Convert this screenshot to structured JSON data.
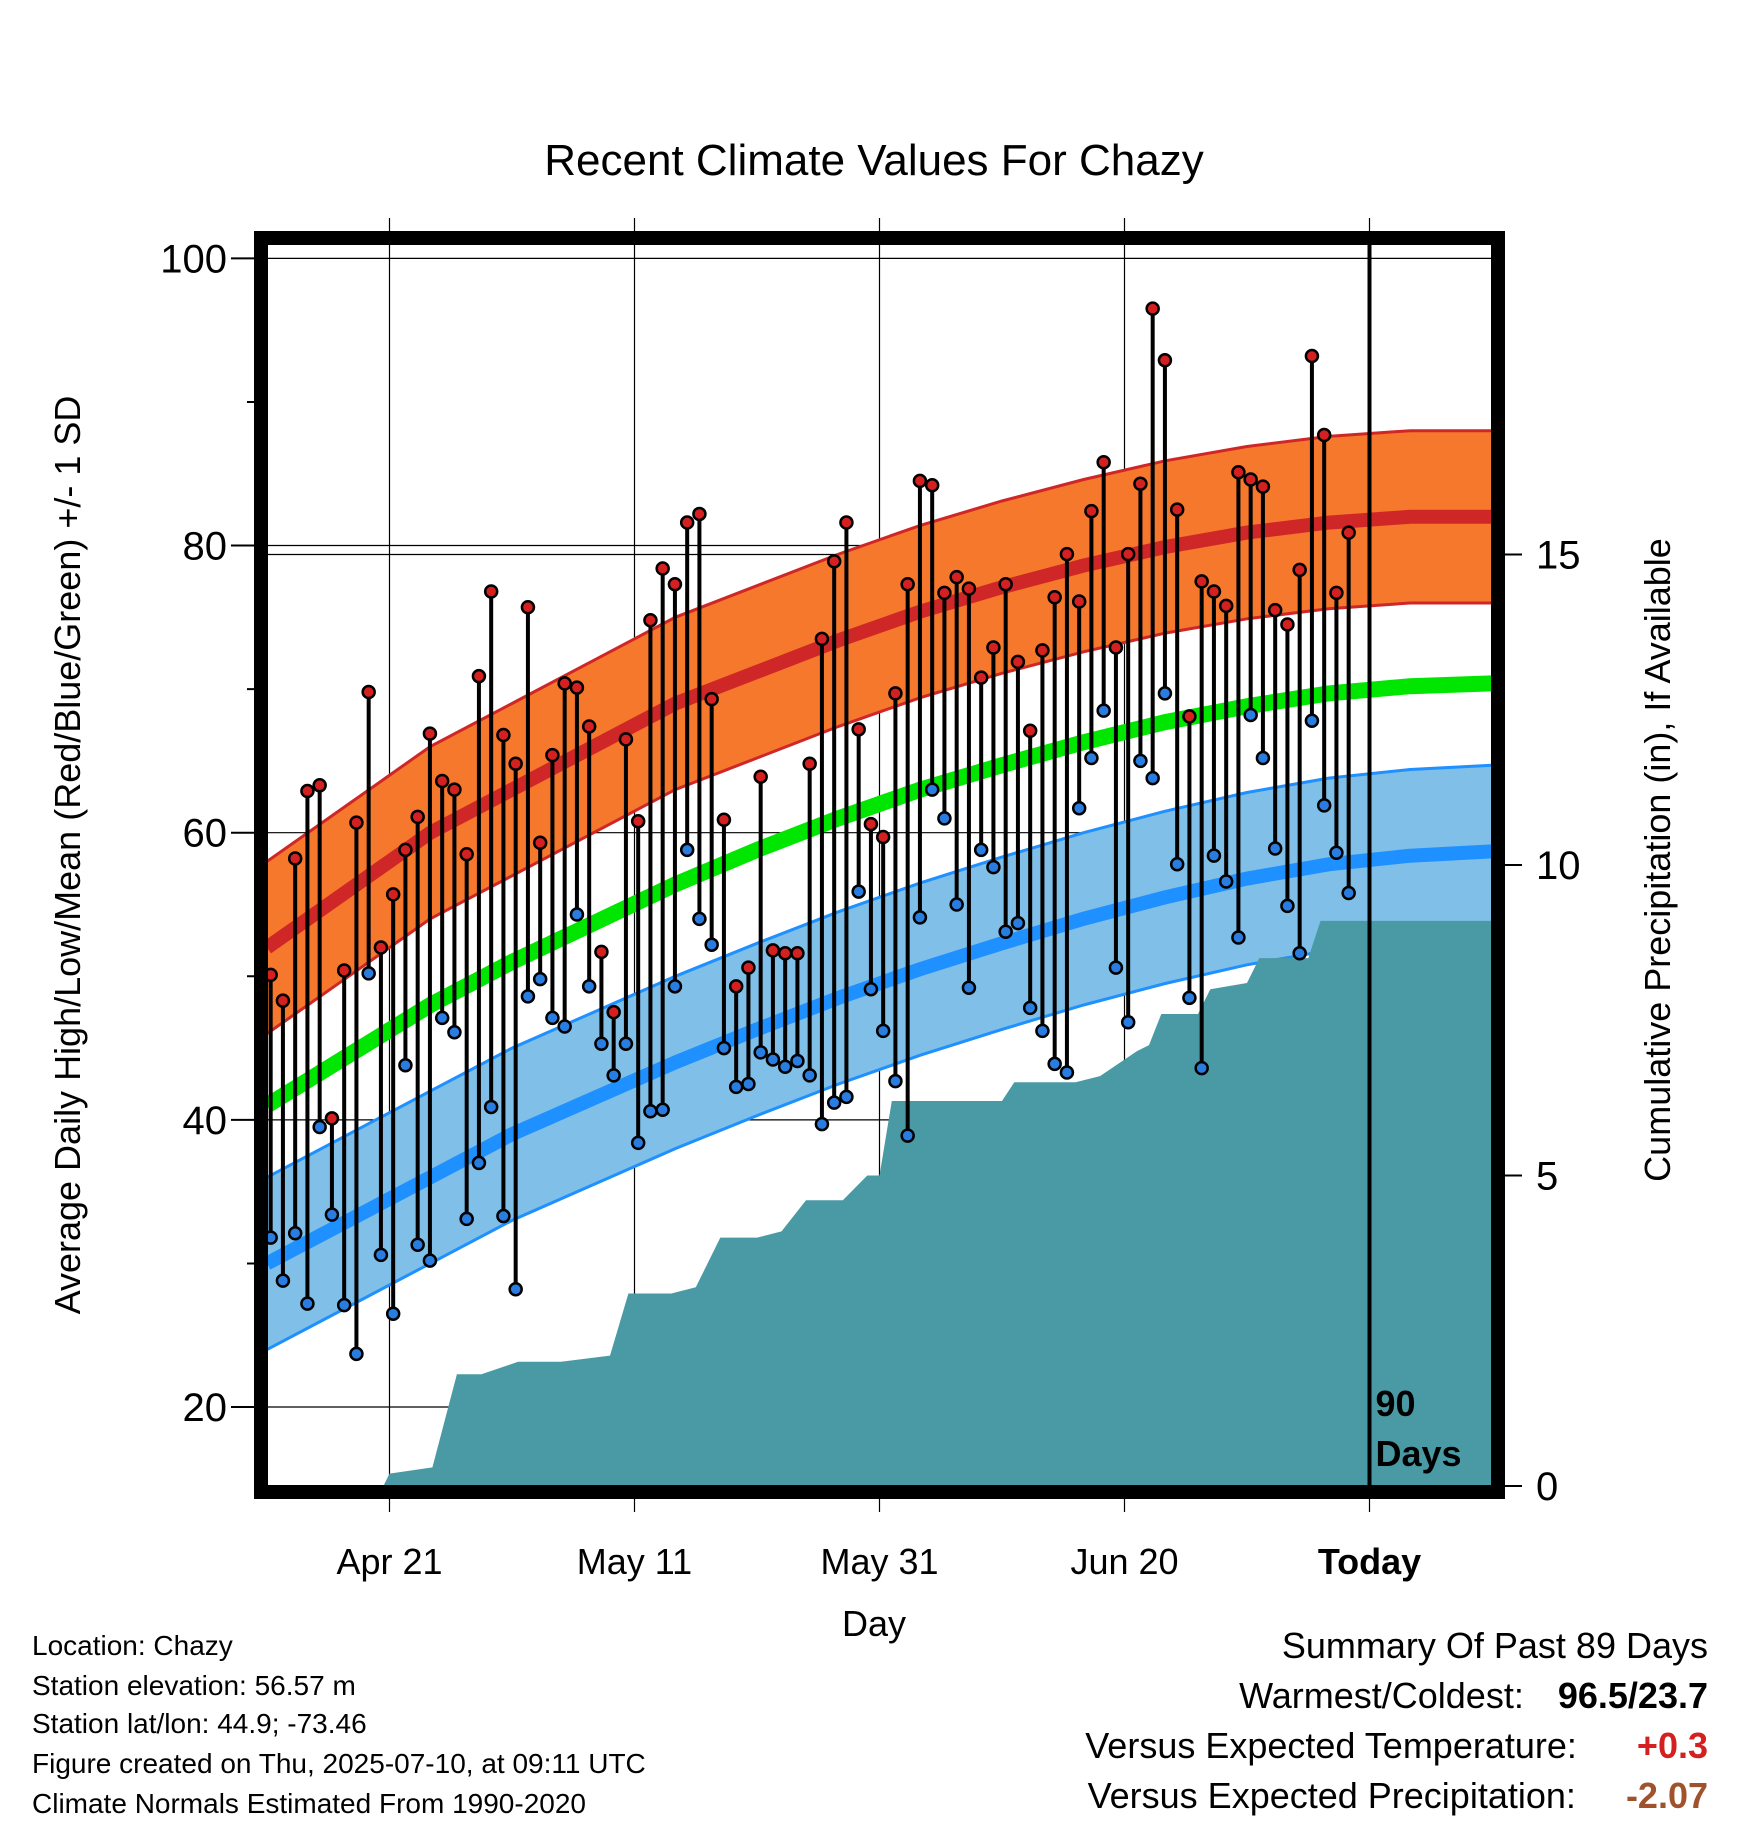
{
  "chart_data": {
    "type": "line",
    "title": "Recent Climate Values For Chazy",
    "xlabel": "Day",
    "ylabel": "Average Daily High/Low/Mean (Red/Blue/Green) +/- 1 SD",
    "y2label": "Cumulative Precipitation (in), If Available",
    "ylim": [
      14.5,
      101
    ],
    "yticks": [
      20,
      40,
      60,
      80,
      100
    ],
    "y2lim": [
      0,
      20
    ],
    "y2ticks": [
      0,
      5,
      10,
      15
    ],
    "xrange_days": [
      0,
      100
    ],
    "xticks": [
      {
        "day": 10,
        "label": "Apr 21"
      },
      {
        "day": 30,
        "label": "May 11"
      },
      {
        "day": 50,
        "label": "May 31"
      },
      {
        "day": 70,
        "label": "Jun 20"
      },
      {
        "day": 90,
        "label": "Today"
      }
    ],
    "today_marker": {
      "day": 90,
      "label_line1": "90",
      "label_line2": "Days"
    },
    "grid": true,
    "colors": {
      "high_band": "#f5782d",
      "high_mean": "#cf2727",
      "low_band": "#80bfe8",
      "low_mean": "#1e90ff",
      "mean_line": "#00e600",
      "precip": "#4a9aa5",
      "high_dot": "#d42020",
      "low_dot": "#2a7de0"
    },
    "normal_high": [
      52,
      56,
      60,
      63,
      66,
      69,
      71.2,
      73.4,
      75.4,
      77.1,
      78.6,
      79.9,
      80.9,
      81.6,
      82,
      82
    ],
    "normal_high_sd": 6,
    "normal_low": [
      30,
      33,
      36,
      39,
      41.5,
      44,
      46.3,
      48.5,
      50.5,
      52.3,
      54,
      55.5,
      56.8,
      57.8,
      58.4,
      58.7
    ],
    "normal_low_sd": 6,
    "normal_mean": [
      41,
      44.5,
      48,
      51,
      53.7,
      56.4,
      58.8,
      61,
      63,
      64.7,
      66.3,
      67.7,
      68.8,
      69.7,
      70.2,
      70.4
    ],
    "normal_step_days": 6.666,
    "daily_high": [
      50.1,
      48.3,
      58.2,
      62.9,
      63.3,
      40.1,
      50.4,
      60.7,
      69.8,
      52,
      55.7,
      58.8,
      61.1,
      66.9,
      63.6,
      63,
      58.5,
      70.9,
      76.8,
      66.8,
      64.8,
      75.7,
      59.3,
      65.4,
      70.4,
      70.1,
      67.4,
      51.7,
      47.5,
      66.5,
      60.8,
      74.8,
      78.4,
      77.3,
      81.6,
      82.2,
      69.3,
      60.9,
      49.3,
      50.6,
      63.9,
      51.8,
      51.6,
      51.6,
      64.8,
      73.5,
      78.9,
      81.6,
      67.2,
      60.6,
      59.7,
      69.7,
      77.3,
      84.5,
      84.2,
      76.7,
      77.8,
      77,
      70.8,
      72.9,
      77.3,
      71.9,
      67.1,
      72.7,
      76.4,
      79.4,
      76.1,
      82.4,
      85.8,
      72.9,
      79.4,
      84.3,
      96.5,
      92.9,
      82.5,
      68.1,
      77.5,
      76.8,
      75.8,
      85.1,
      84.6,
      84.1,
      75.5,
      74.5,
      78.3,
      93.2,
      87.7,
      76.7,
      80.9
    ],
    "daily_low": [
      31.8,
      28.8,
      32.1,
      27.2,
      39.5,
      33.4,
      27.1,
      23.7,
      50.2,
      30.6,
      26.5,
      43.8,
      31.3,
      30.2,
      47.1,
      46.1,
      33.1,
      37,
      40.9,
      33.3,
      28.2,
      48.6,
      49.8,
      47.1,
      46.5,
      54.3,
      49.3,
      45.3,
      43.1,
      45.3,
      38.4,
      40.6,
      40.7,
      49.3,
      58.8,
      54,
      52.2,
      45,
      42.3,
      42.5,
      44.7,
      44.2,
      43.7,
      44.1,
      43.1,
      39.7,
      41.2,
      41.6,
      55.9,
      49.1,
      46.2,
      42.7,
      38.9,
      54.1,
      63,
      61,
      55,
      49.2,
      58.8,
      57.6,
      53.1,
      53.7,
      47.8,
      46.2,
      43.9,
      43.3,
      61.7,
      65.2,
      68.5,
      50.6,
      46.8,
      65,
      63.8,
      69.7,
      57.8,
      48.5,
      43.6,
      58.4,
      56.6,
      52.7,
      68.2,
      65.2,
      58.9,
      54.9,
      51.6,
      67.8,
      61.9,
      58.6,
      55.8
    ],
    "daily_start_day": 0.3,
    "daily_step_days": 1,
    "precip_cumulative": [
      [
        0,
        0
      ],
      [
        9.5,
        0
      ],
      [
        10,
        0.2
      ],
      [
        13.5,
        0.3
      ],
      [
        15.5,
        1.8
      ],
      [
        17.5,
        1.8
      ],
      [
        19,
        1.9
      ],
      [
        20.5,
        2
      ],
      [
        24,
        2
      ],
      [
        28,
        2.1
      ],
      [
        29.5,
        3.1
      ],
      [
        33,
        3.1
      ],
      [
        35,
        3.2
      ],
      [
        37,
        4
      ],
      [
        40,
        4
      ],
      [
        42,
        4.1
      ],
      [
        44,
        4.6
      ],
      [
        47,
        4.6
      ],
      [
        49,
        5
      ],
      [
        50,
        5
      ],
      [
        51,
        6.2
      ],
      [
        55,
        6.2
      ],
      [
        60,
        6.2
      ],
      [
        61,
        6.5
      ],
      [
        66,
        6.5
      ],
      [
        68,
        6.6
      ],
      [
        71,
        7
      ],
      [
        72,
        7.1
      ],
      [
        73,
        7.6
      ],
      [
        76,
        7.6
      ],
      [
        77,
        8
      ],
      [
        80,
        8.1
      ],
      [
        81,
        8.5
      ],
      [
        85,
        8.5
      ],
      [
        86,
        9.1
      ],
      [
        89,
        9.1
      ],
      [
        90,
        9.1
      ],
      [
        100,
        9.1
      ]
    ]
  },
  "meta": {
    "location": "Location: Chazy",
    "elevation": "Station elevation: 56.57 m",
    "latlon": "Station lat/lon: 44.9; -73.46",
    "created": "Figure created on Thu, 2025-07-10, at 09:11 UTC",
    "normals": "Climate Normals Estimated From 1990-2020"
  },
  "summary": {
    "heading": "Summary Of Past 89 Days",
    "warm_cold_label": "Warmest/Coldest:",
    "warm_cold_value": "96.5/23.7",
    "temp_label": "Versus Expected Temperature:",
    "temp_value": "+0.3",
    "temp_color": "#d42020",
    "precip_label": "Versus Expected Precipitation:",
    "precip_value": "-2.07",
    "precip_color": "#a0522d"
  }
}
